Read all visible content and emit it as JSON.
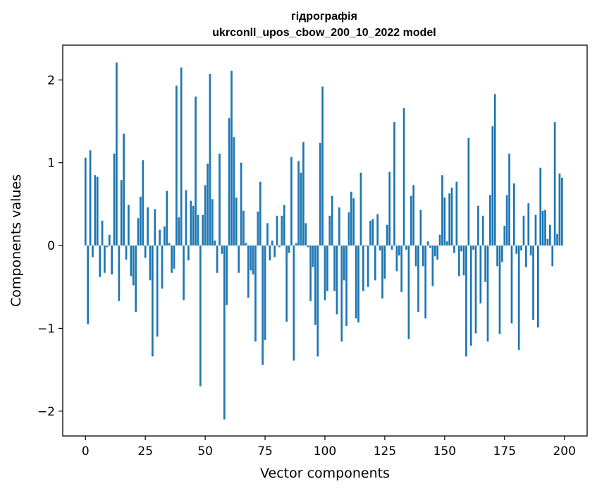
{
  "chart_data": {
    "type": "bar",
    "title": "гідрографія",
    "subtitle": "ukrconll_upos_cbow_200_10_2022 model",
    "xlabel": "Vector components",
    "ylabel": "Components values",
    "xlim": [
      -9.5,
      209.5
    ],
    "ylim": [
      -2.3,
      2.42
    ],
    "x_ticks": [
      0,
      25,
      50,
      75,
      100,
      125,
      150,
      175,
      200
    ],
    "y_ticks": [
      -2,
      -1,
      0,
      1,
      2
    ],
    "x_tick_labels": [
      "0",
      "25",
      "50",
      "75",
      "100",
      "125",
      "150",
      "175",
      "200"
    ],
    "y_tick_labels": [
      "−2",
      "−1",
      "0",
      "1",
      "2"
    ],
    "grid": false,
    "bar_color": "#1f77b4",
    "values": [
      1.06,
      -0.95,
      1.15,
      -0.14,
      0.85,
      0.83,
      -0.38,
      0.3,
      -0.33,
      -0.02,
      0.13,
      -0.35,
      1.11,
      2.21,
      -0.67,
      0.79,
      1.35,
      -0.17,
      0.49,
      -0.37,
      -0.48,
      -0.8,
      0.33,
      0.59,
      1.03,
      -0.15,
      0.46,
      -0.42,
      -1.34,
      0.44,
      -1.1,
      0.19,
      -0.52,
      0.23,
      0.66,
      0.03,
      -0.33,
      -0.28,
      1.93,
      0.34,
      2.15,
      -0.66,
      0.67,
      -0.18,
      0.54,
      0.48,
      1.8,
      0.37,
      -1.7,
      0.37,
      0.73,
      0.99,
      2.07,
      0.56,
      0.06,
      -0.33,
      1.11,
      -0.1,
      -2.1,
      -0.72,
      1.54,
      2.11,
      1.31,
      0.58,
      -0.33,
      1.0,
      0.42,
      0.03,
      -0.63,
      -0.3,
      -0.35,
      -1.16,
      0.41,
      0.77,
      -1.44,
      -1.14,
      0.27,
      -0.18,
      0.06,
      -0.14,
      0.36,
      -0.02,
      0.36,
      0.49,
      -0.92,
      -0.09,
      1.07,
      -1.39,
      0.03,
      1.02,
      0.88,
      1.25,
      0.27,
      -0.02,
      -0.67,
      -0.26,
      -0.96,
      -1.34,
      1.24,
      1.92,
      -0.66,
      -0.55,
      0.36,
      0.6,
      -0.55,
      -0.83,
      0.46,
      -1.16,
      -0.42,
      -0.97,
      0.4,
      0.65,
      0.57,
      -0.88,
      -0.93,
      0.88,
      -0.55,
      -0.01,
      -0.5,
      0.3,
      0.32,
      -0.42,
      0.38,
      -0.06,
      -0.64,
      -0.4,
      0.25,
      0.89,
      -0.05,
      1.49,
      -0.31,
      -0.12,
      -0.56,
      1.66,
      -0.05,
      -1.13,
      0.6,
      0.73,
      -0.25,
      -0.8,
      0.43,
      -0.25,
      -0.88,
      0.05,
      -0.03,
      -0.49,
      -0.13,
      -0.17,
      0.13,
      0.85,
      0.58,
      0.05,
      0.63,
      0.7,
      -0.09,
      0.77,
      -0.37,
      -0.07,
      -0.36,
      -1.34,
      1.3,
      -1.21,
      -0.05,
      -1.06,
      0.48,
      -0.7,
      0.36,
      -0.44,
      -1.16,
      0.61,
      1.44,
      1.83,
      -0.25,
      -1.07,
      -0.2,
      0.24,
      0.61,
      1.11,
      -0.94,
      0.75,
      -0.1,
      -1.26,
      -0.06,
      0.36,
      -0.26,
      0.51,
      -0.12,
      -0.9,
      0.37,
      -0.99,
      0.94,
      0.42,
      0.43,
      0.08,
      0.25,
      -0.25,
      1.49,
      0.14,
      0.87,
      0.82
    ]
  }
}
